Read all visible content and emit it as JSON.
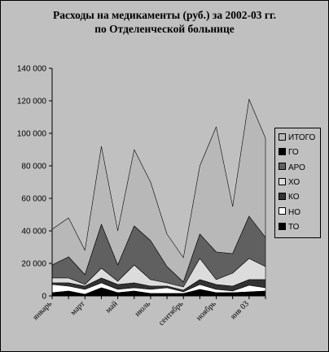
{
  "chart_data": {
    "type": "area",
    "stacked": true,
    "title": "Расходы на медикаменты (руб.) за 2002-03 гг.",
    "subtitle": "по Отделенческой больнице",
    "xlabel": "",
    "ylabel": "",
    "ylim": [
      0,
      140000
    ],
    "yticks": [
      "0",
      "20 000",
      "40 000",
      "60 000",
      "80 000",
      "100 000",
      "120 000",
      "140 000"
    ],
    "yticks_values": [
      0,
      20000,
      40000,
      60000,
      80000,
      100000,
      120000,
      140000
    ],
    "xtick_labels": [
      {
        "index": 0,
        "text": "январь"
      },
      {
        "index": 2,
        "text": "март"
      },
      {
        "index": 4,
        "text": "май"
      },
      {
        "index": 6,
        "text": "июль"
      },
      {
        "index": 8,
        "text": "сентябрь"
      },
      {
        "index": 10,
        "text": "ноябрь"
      },
      {
        "index": 12,
        "text": "янв 03"
      }
    ],
    "x_count": 14,
    "grid": false,
    "legend_position": "right",
    "series": [
      {
        "name": "ТО",
        "color": "#000000",
        "values": [
          2000,
          3000,
          1000,
          5000,
          2000,
          3000,
          1500,
          1500,
          1500,
          4000,
          2000,
          2000,
          2500,
          3000
        ]
      },
      {
        "name": "НО",
        "color": "#ffffff",
        "values": [
          5000,
          3000,
          3000,
          3000,
          2000,
          2000,
          2500,
          3500,
          1000,
          3000,
          2000,
          1000,
          4000,
          2000
        ]
      },
      {
        "name": "КО",
        "color": "#333333",
        "values": [
          1000,
          2000,
          2000,
          3000,
          3000,
          3000,
          2000,
          1000,
          1000,
          3000,
          3000,
          3000,
          3500,
          5000
        ]
      },
      {
        "name": "ХО",
        "color": "#dcdcdc",
        "values": [
          3000,
          3000,
          1000,
          6000,
          2000,
          11000,
          4000,
          2000,
          2000,
          13000,
          3000,
          8000,
          13000,
          8000
        ]
      },
      {
        "name": "АРО",
        "color": "#606060",
        "values": [
          8000,
          13000,
          6000,
          27000,
          10000,
          24000,
          24000,
          10000,
          3000,
          15000,
          17000,
          12000,
          26000,
          18000
        ]
      },
      {
        "name": "ГО",
        "color": "#000000",
        "values": [
          0,
          0,
          0,
          0,
          0,
          0,
          0,
          0,
          0,
          0,
          0,
          0,
          0,
          0
        ]
      },
      {
        "name": "ИТОГО",
        "color": "#b8b8b8",
        "values": [
          22000,
          24000,
          15000,
          48000,
          21000,
          47000,
          36000,
          20000,
          15000,
          42000,
          77000,
          29000,
          72000,
          61000
        ]
      }
    ],
    "legend_order": [
      "ИТОГО",
      "ГО",
      "АРО",
      "ХО",
      "КО",
      "НО",
      "ТО"
    ]
  }
}
